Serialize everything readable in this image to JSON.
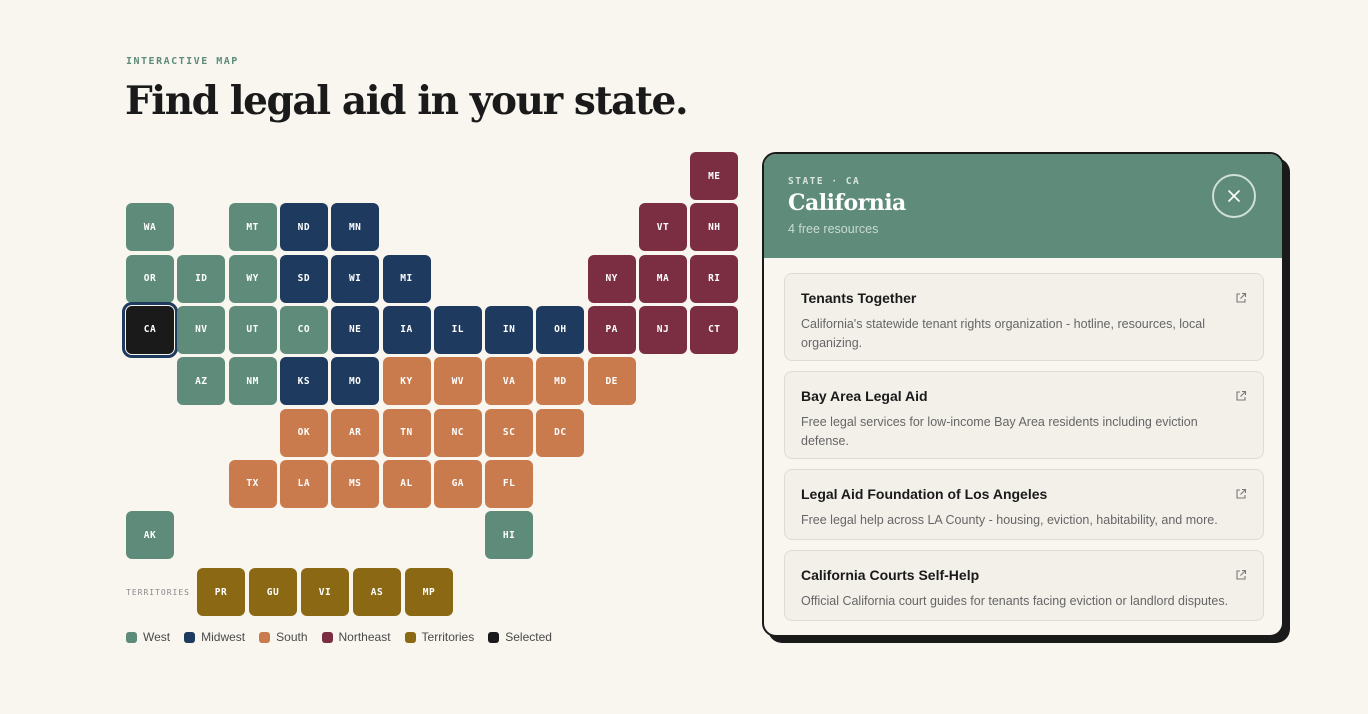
{
  "header": {
    "eyebrow": "INTERACTIVE MAP",
    "title": "Find legal aid in your state."
  },
  "colors": {
    "west": "#5e8b7a",
    "midwest": "#1e3a5f",
    "south": "#c97b4e",
    "northeast": "#7b2d42",
    "territories": "#8b6914",
    "selected": "#1a1a1a"
  },
  "map": {
    "states": [
      {
        "code": "ME",
        "region": "northeast",
        "row": 0,
        "col": 11
      },
      {
        "code": "WA",
        "region": "west",
        "row": 1,
        "col": 0
      },
      {
        "code": "MT",
        "region": "west",
        "row": 1,
        "col": 2
      },
      {
        "code": "ND",
        "region": "midwest",
        "row": 1,
        "col": 3
      },
      {
        "code": "MN",
        "region": "midwest",
        "row": 1,
        "col": 4
      },
      {
        "code": "VT",
        "region": "northeast",
        "row": 1,
        "col": 10
      },
      {
        "code": "NH",
        "region": "northeast",
        "row": 1,
        "col": 11
      },
      {
        "code": "OR",
        "region": "west",
        "row": 2,
        "col": 0
      },
      {
        "code": "ID",
        "region": "west",
        "row": 2,
        "col": 1
      },
      {
        "code": "WY",
        "region": "west",
        "row": 2,
        "col": 2
      },
      {
        "code": "SD",
        "region": "midwest",
        "row": 2,
        "col": 3
      },
      {
        "code": "WI",
        "region": "midwest",
        "row": 2,
        "col": 4
      },
      {
        "code": "MI",
        "region": "midwest",
        "row": 2,
        "col": 5
      },
      {
        "code": "NY",
        "region": "northeast",
        "row": 2,
        "col": 9
      },
      {
        "code": "MA",
        "region": "northeast",
        "row": 2,
        "col": 10
      },
      {
        "code": "RI",
        "region": "northeast",
        "row": 2,
        "col": 11
      },
      {
        "code": "CA",
        "region": "west",
        "row": 3,
        "col": 0,
        "selected": true
      },
      {
        "code": "NV",
        "region": "west",
        "row": 3,
        "col": 1
      },
      {
        "code": "UT",
        "region": "west",
        "row": 3,
        "col": 2
      },
      {
        "code": "CO",
        "region": "west",
        "row": 3,
        "col": 3
      },
      {
        "code": "NE",
        "region": "midwest",
        "row": 3,
        "col": 4
      },
      {
        "code": "IA",
        "region": "midwest",
        "row": 3,
        "col": 5
      },
      {
        "code": "IL",
        "region": "midwest",
        "row": 3,
        "col": 6
      },
      {
        "code": "IN",
        "region": "midwest",
        "row": 3,
        "col": 7
      },
      {
        "code": "OH",
        "region": "midwest",
        "row": 3,
        "col": 8
      },
      {
        "code": "PA",
        "region": "northeast",
        "row": 3,
        "col": 9
      },
      {
        "code": "NJ",
        "region": "northeast",
        "row": 3,
        "col": 10
      },
      {
        "code": "CT",
        "region": "northeast",
        "row": 3,
        "col": 11
      },
      {
        "code": "AZ",
        "region": "west",
        "row": 4,
        "col": 1
      },
      {
        "code": "NM",
        "region": "west",
        "row": 4,
        "col": 2
      },
      {
        "code": "KS",
        "region": "midwest",
        "row": 4,
        "col": 3
      },
      {
        "code": "MO",
        "region": "midwest",
        "row": 4,
        "col": 4
      },
      {
        "code": "KY",
        "region": "south",
        "row": 4,
        "col": 5
      },
      {
        "code": "WV",
        "region": "south",
        "row": 4,
        "col": 6
      },
      {
        "code": "VA",
        "region": "south",
        "row": 4,
        "col": 7
      },
      {
        "code": "MD",
        "region": "south",
        "row": 4,
        "col": 8
      },
      {
        "code": "DE",
        "region": "south",
        "row": 4,
        "col": 9
      },
      {
        "code": "OK",
        "region": "south",
        "row": 5,
        "col": 3
      },
      {
        "code": "AR",
        "region": "south",
        "row": 5,
        "col": 4
      },
      {
        "code": "TN",
        "region": "south",
        "row": 5,
        "col": 5
      },
      {
        "code": "NC",
        "region": "south",
        "row": 5,
        "col": 6
      },
      {
        "code": "SC",
        "region": "south",
        "row": 5,
        "col": 7
      },
      {
        "code": "DC",
        "region": "south",
        "row": 5,
        "col": 8
      },
      {
        "code": "TX",
        "region": "south",
        "row": 6,
        "col": 2
      },
      {
        "code": "LA",
        "region": "south",
        "row": 6,
        "col": 3
      },
      {
        "code": "MS",
        "region": "south",
        "row": 6,
        "col": 4
      },
      {
        "code": "AL",
        "region": "south",
        "row": 6,
        "col": 5
      },
      {
        "code": "GA",
        "region": "south",
        "row": 6,
        "col": 6
      },
      {
        "code": "FL",
        "region": "south",
        "row": 6,
        "col": 7
      },
      {
        "code": "AK",
        "region": "west",
        "row": 7,
        "col": 0
      },
      {
        "code": "HI",
        "region": "west",
        "row": 7,
        "col": 7
      }
    ],
    "territories_label": "TERRITORIES",
    "territories": [
      "PR",
      "GU",
      "VI",
      "AS",
      "MP"
    ]
  },
  "legend": [
    {
      "label": "West",
      "region": "west"
    },
    {
      "label": "Midwest",
      "region": "midwest"
    },
    {
      "label": "South",
      "region": "south"
    },
    {
      "label": "Northeast",
      "region": "northeast"
    },
    {
      "label": "Territories",
      "region": "territories"
    },
    {
      "label": "Selected",
      "region": "selected"
    }
  ],
  "panel": {
    "eyebrow": "STATE · CA",
    "title": "California",
    "subtitle": "4 free resources",
    "close_icon": "close-icon",
    "resources": [
      {
        "title": "Tenants Together",
        "description": "California's statewide tenant rights organization - hotline, resources, local organizing."
      },
      {
        "title": "Bay Area Legal Aid",
        "description": "Free legal services for low-income Bay Area residents including eviction defense."
      },
      {
        "title": "Legal Aid Foundation of Los Angeles",
        "description": "Free legal help across LA County - housing, eviction, habitability, and more."
      },
      {
        "title": "California Courts Self-Help",
        "description": "Official California court guides for tenants facing eviction or landlord disputes."
      }
    ]
  }
}
